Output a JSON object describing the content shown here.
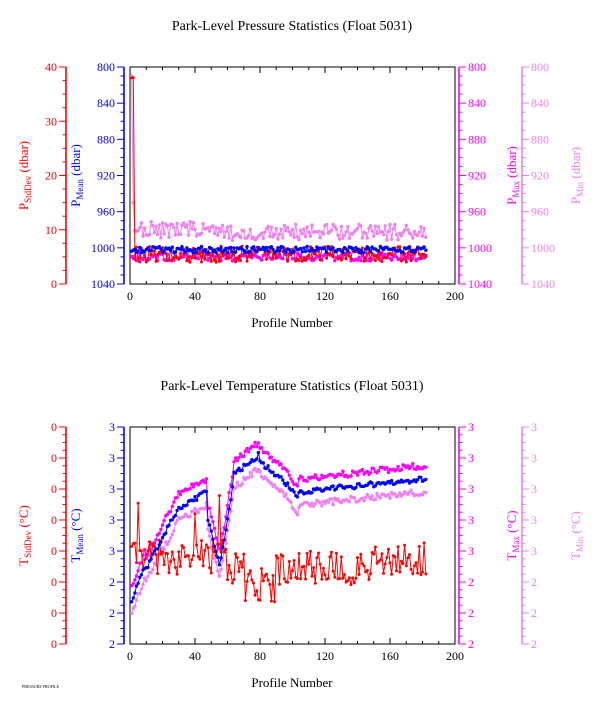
{
  "footer_text": "PRESSURE PROFILE",
  "colors": {
    "stddev": "#ff0000",
    "mean": "#0000ff",
    "max": "#ff00ff",
    "min": "#f080f0",
    "axes": "#000000"
  },
  "chart_data": [
    {
      "type": "line",
      "title": "Park-Level Pressure Statistics (Float 5031)",
      "xlabel": "Profile Number",
      "xlim": [
        0,
        200
      ],
      "xticks": [
        "0",
        "40",
        "80",
        "120",
        "160",
        "200"
      ],
      "axes": {
        "stddev": {
          "label_main": "P",
          "label_sub": "StdDev",
          "label_unit": "(dbar)",
          "color": "#ff0000",
          "ticks": [
            "40",
            "30",
            "20",
            "10",
            "0"
          ]
        },
        "mean": {
          "label_main": "P",
          "label_sub": "Mean",
          "label_unit": "(dbar)",
          "color": "#0000ff",
          "ticks": [
            "800",
            "840",
            "880",
            "920",
            "960",
            "1000",
            "1040"
          ]
        },
        "max": {
          "label_main": "P",
          "label_sub": "Max",
          "label_unit": "(dbar)",
          "color": "#ff00ff",
          "ticks": [
            "800",
            "840",
            "880",
            "920",
            "960",
            "1000",
            "1040"
          ]
        },
        "min": {
          "label_main": "P",
          "label_sub": "Min",
          "label_unit": "(dbar)",
          "color": "#f080f0",
          "ticks": [
            "800",
            "840",
            "880",
            "920",
            "960",
            "1000",
            "1040"
          ]
        }
      },
      "series_summary": [
        {
          "name": "P Min",
          "axis": "min",
          "x_range": [
            1,
            182
          ],
          "typical_value_dbar": 980,
          "note": "values mostly 970–990 dbar; spike toward ~810 dbar at profile 1"
        },
        {
          "name": "P Mean",
          "axis": "mean",
          "x_range": [
            1,
            182
          ],
          "typical_value_dbar": 1002
        },
        {
          "name": "P Max",
          "axis": "max",
          "x_range": [
            1,
            182
          ],
          "typical_value_dbar": 1010
        },
        {
          "name": "P StdDev",
          "axis": "stddev",
          "x_range": [
            1,
            182
          ],
          "typical_value_dbar": 4
        }
      ]
    },
    {
      "type": "line",
      "title": "Park-Level Temperature Statistics (Float 5031)",
      "xlabel": "Profile Number",
      "xlim": [
        0,
        200
      ],
      "xticks": [
        "0",
        "40",
        "80",
        "120",
        "160",
        "200"
      ],
      "axes": {
        "stddev": {
          "label_main": "T",
          "label_sub": "StdDev",
          "label_unit": "(°C)",
          "color": "#ff0000",
          "ticks": [
            "0",
            "0",
            "0",
            "0",
            "0",
            "0",
            "0",
            "0"
          ]
        },
        "mean": {
          "label_main": "T",
          "label_sub": "Mean",
          "label_unit": "(°C)",
          "color": "#0000ff",
          "ticks": [
            "3",
            "3",
            "3",
            "3",
            "3",
            "2",
            "2",
            "2"
          ]
        },
        "max": {
          "label_main": "T",
          "label_sub": "Max",
          "label_unit": "(°C)",
          "color": "#ff00ff",
          "ticks": [
            "3",
            "3",
            "3",
            "3",
            "3",
            "2",
            "2",
            "2"
          ]
        },
        "min": {
          "label_main": "T",
          "label_sub": "Min",
          "label_unit": "(°C)",
          "color": "#f080f0",
          "ticks": [
            "3",
            "3",
            "3",
            "3",
            "3",
            "2",
            "2",
            "2"
          ]
        }
      },
      "series_summary": [
        {
          "name": "T Max",
          "axis": "max",
          "x_range": [
            1,
            182
          ],
          "note": "rises over profiles 0–80, dips near 50 and 100, then slowly increases"
        },
        {
          "name": "T Mean",
          "axis": "mean",
          "x_range": [
            1,
            182
          ],
          "note": "tracks T Max slightly lower"
        },
        {
          "name": "T Min",
          "axis": "min",
          "x_range": [
            1,
            182
          ],
          "note": "tracks T Mean slightly lower"
        },
        {
          "name": "T StdDev",
          "axis": "stddev",
          "x_range": [
            1,
            182
          ],
          "note": "noisy, mostly in lower half of axis"
        }
      ]
    }
  ]
}
